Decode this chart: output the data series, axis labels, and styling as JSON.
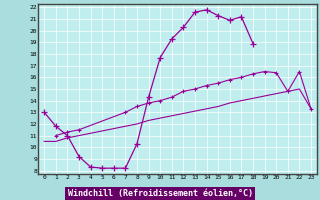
{
  "xlabel": "Windchill (Refroidissement éolien,°C)",
  "xlim_min": 0,
  "xlim_max": 23,
  "ylim_min": 8,
  "ylim_max": 22,
  "line_color": "#990099",
  "bg_color": "#aadddd",
  "plot_bg": "#c0eeee",
  "grid_color": "#ffffff",
  "xlabel_bg": "#660066",
  "xlabel_fg": "#ffffff",
  "line1_x": [
    0,
    1,
    2,
    3,
    4,
    5,
    6,
    7,
    8,
    9,
    10,
    11,
    12,
    13,
    14,
    15,
    16,
    17,
    18
  ],
  "line1_y": [
    13.0,
    11.8,
    11.0,
    9.2,
    8.3,
    8.2,
    8.2,
    8.2,
    10.3,
    14.3,
    17.7,
    19.3,
    20.3,
    21.6,
    21.8,
    21.3,
    20.9,
    21.2,
    18.9
  ],
  "line2_x": [
    1,
    2,
    3,
    7,
    8,
    9,
    10,
    11,
    12,
    13,
    14,
    15,
    16,
    17,
    18,
    19,
    20,
    21,
    22,
    23
  ],
  "line2_y": [
    11.0,
    11.3,
    11.5,
    13.0,
    13.5,
    13.8,
    14.0,
    14.3,
    14.8,
    15.0,
    15.3,
    15.5,
    15.8,
    16.0,
    16.3,
    16.5,
    16.4,
    14.8,
    16.5,
    13.3
  ],
  "line3_x": [
    0,
    1,
    2,
    3,
    4,
    5,
    6,
    7,
    8,
    9,
    10,
    11,
    12,
    13,
    14,
    15,
    16,
    17,
    18,
    19,
    20,
    21,
    22,
    23
  ],
  "line3_y": [
    10.5,
    10.5,
    10.8,
    11.0,
    11.2,
    11.4,
    11.6,
    11.8,
    12.0,
    12.3,
    12.5,
    12.7,
    12.9,
    13.1,
    13.3,
    13.5,
    13.8,
    14.0,
    14.2,
    14.4,
    14.6,
    14.8,
    15.0,
    13.3
  ]
}
